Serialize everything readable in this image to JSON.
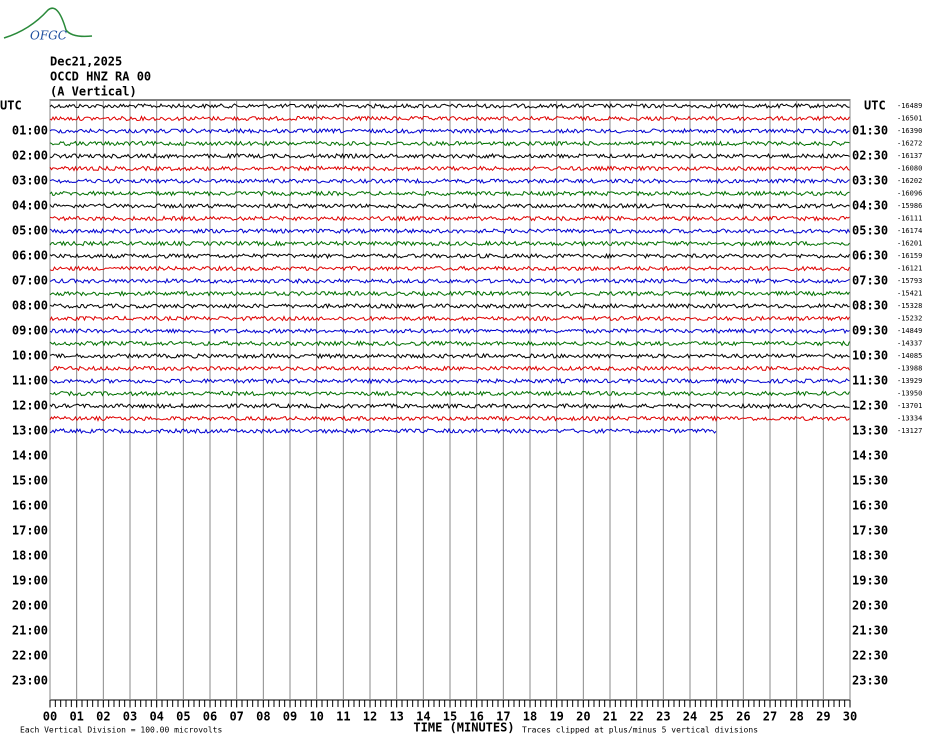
{
  "logo": "OFGC",
  "header": [
    "Dec21,2025",
    "OCCD HNZ RA 00",
    "(A Vertical)"
  ],
  "left_axis": {
    "title": "UTC",
    "labels": [
      "01:00",
      "02:00",
      "03:00",
      "04:00",
      "05:00",
      "06:00",
      "07:00",
      "08:00",
      "09:00",
      "10:00",
      "11:00",
      "12:00",
      "13:00",
      "14:00",
      "15:00",
      "16:00",
      "17:00",
      "18:00",
      "19:00",
      "20:00",
      "21:00",
      "22:00",
      "23:00"
    ]
  },
  "right_axis": {
    "title": "UTC",
    "labels": [
      "01:30",
      "02:30",
      "03:30",
      "04:30",
      "05:30",
      "06:30",
      "07:30",
      "08:30",
      "09:30",
      "10:30",
      "11:30",
      "12:30",
      "13:30",
      "14:30",
      "15:30",
      "16:30",
      "17:30",
      "18:30",
      "19:30",
      "20:30",
      "21:30",
      "22:30",
      "23:30"
    ]
  },
  "trace_offsets": [
    -16489,
    -16501,
    -16390,
    -16272,
    -16137,
    -16080,
    -16202,
    -16096,
    -15986,
    -16111,
    -16174,
    -16201,
    -16159,
    -16121,
    -15793,
    -15421,
    -15328,
    -15232,
    -14849,
    -14337,
    -14085,
    -13988,
    -13929,
    -13950,
    -13701,
    -13334,
    -13127
  ],
  "x_axis": {
    "title": "TIME (MINUTES)",
    "labels": [
      "00",
      "01",
      "02",
      "03",
      "04",
      "05",
      "06",
      "07",
      "08",
      "09",
      "10",
      "11",
      "12",
      "13",
      "14",
      "15",
      "16",
      "17",
      "18",
      "19",
      "20",
      "21",
      "22",
      "23",
      "24",
      "25",
      "26",
      "27",
      "28",
      "29",
      "30"
    ]
  },
  "footer": {
    "scale": "Each Vertical Division =  100.00 microvolts",
    "clip": "Traces clipped at plus/minus 5 vertical divisions"
  }
}
